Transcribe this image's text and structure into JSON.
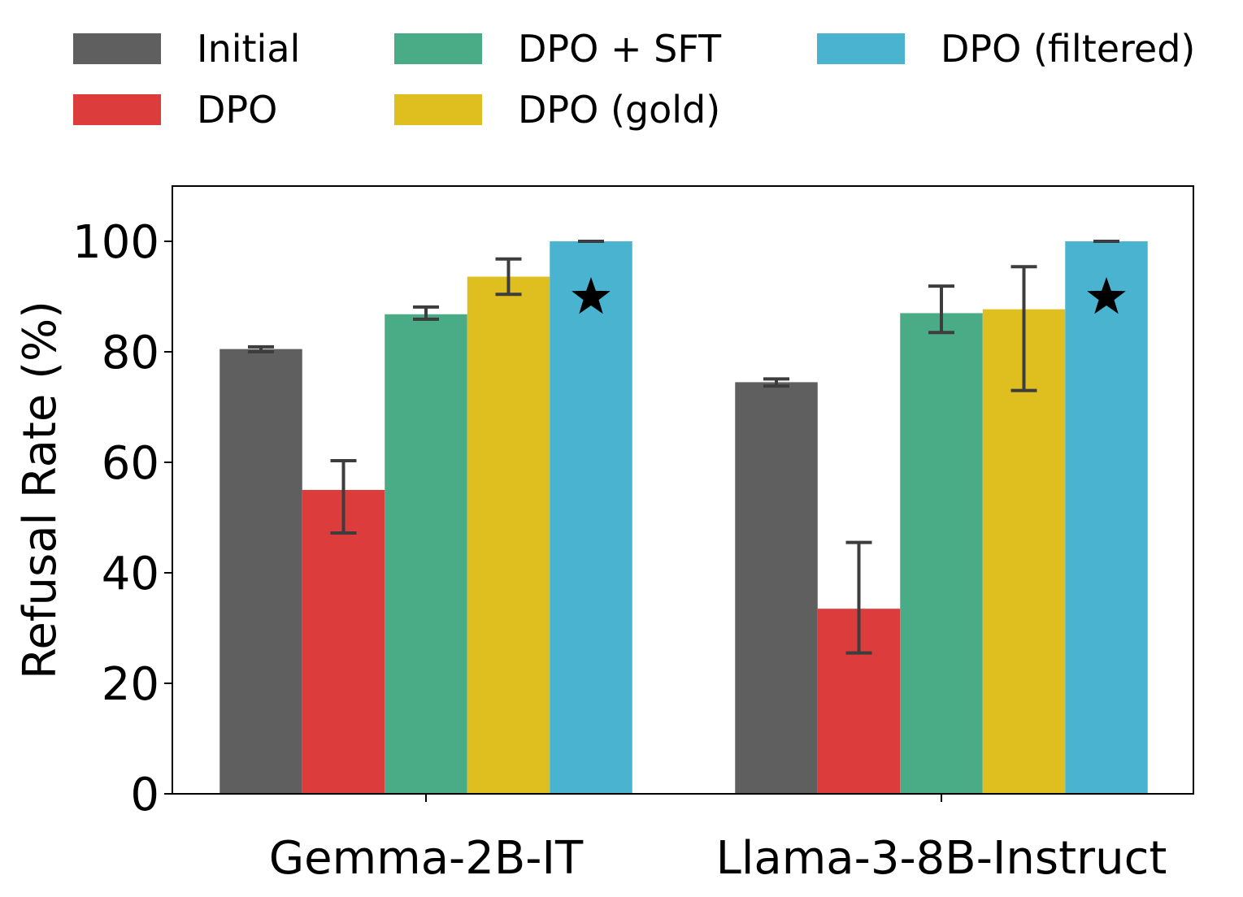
{
  "chart_data": {
    "type": "bar",
    "title": "",
    "xlabel": "",
    "ylabel": "Refusal Rate (%)",
    "ylim": [
      0,
      110
    ],
    "yticks": [
      0,
      20,
      40,
      60,
      80,
      100
    ],
    "categories": [
      "Gemma-2B-IT",
      "Llama-3-8B-Instruct"
    ],
    "legend_position": "top",
    "series": [
      {
        "name": "Initial",
        "color": "#605f5f",
        "values": [
          80.5,
          74.5
        ],
        "err_low": [
          80.0,
          73.8
        ],
        "err_high": [
          80.9,
          75.1
        ]
      },
      {
        "name": "DPO",
        "color": "#dd3c3d",
        "values": [
          55,
          33.5
        ],
        "err_low": [
          47.2,
          25.5
        ],
        "err_high": [
          60.3,
          45.5
        ]
      },
      {
        "name": "DPO + SFT",
        "color": "#4aac86",
        "values": [
          86.8,
          87
        ],
        "err_low": [
          85.9,
          83.5
        ],
        "err_high": [
          88.1,
          91.9
        ]
      },
      {
        "name": "DPO (gold)",
        "color": "#dfbf20",
        "values": [
          93.6,
          87.7
        ],
        "err_low": [
          90.4,
          73
        ],
        "err_high": [
          96.8,
          95.4
        ]
      },
      {
        "name": "DPO (filtered)",
        "color": "#4ab3cf",
        "values": [
          100,
          100
        ],
        "err_low": [
          100,
          100
        ],
        "err_high": [
          100,
          100
        ],
        "marker": "star"
      }
    ]
  }
}
